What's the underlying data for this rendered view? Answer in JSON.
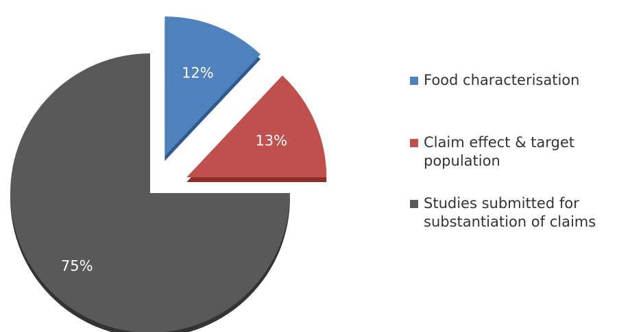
{
  "chart_data": {
    "type": "pie",
    "title": "",
    "categories": [
      "Food characterisation",
      "Claim effect & target population",
      "Studies submitted for substantiation of claims"
    ],
    "values": [
      12,
      13,
      75
    ],
    "labels": [
      "12%",
      "13%",
      "75%"
    ],
    "colors": [
      "#4f81bd",
      "#c0504d",
      "#595959"
    ],
    "side_colors": [
      "#2f5a8e",
      "#8c2e2b",
      "#333333"
    ],
    "exploded": [
      true,
      true,
      false
    ],
    "legend_position": "right"
  }
}
